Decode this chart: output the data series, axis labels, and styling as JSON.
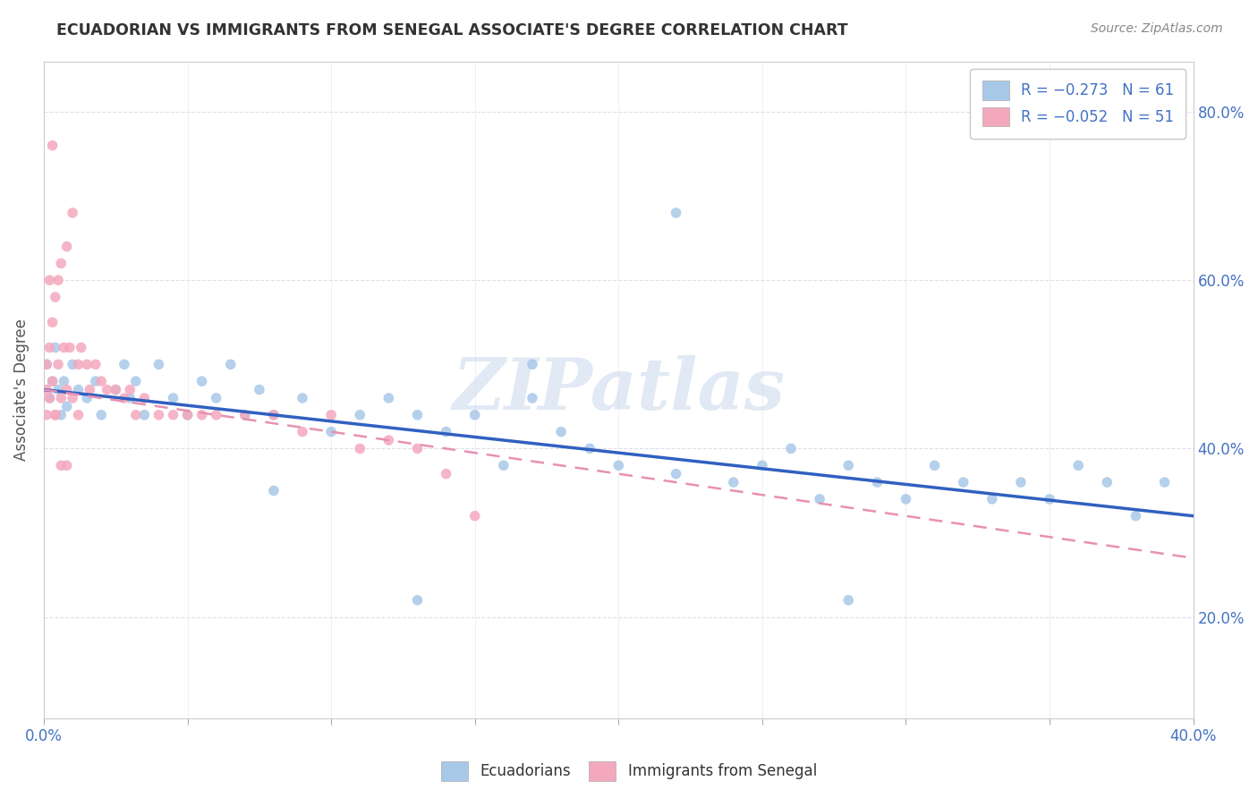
{
  "title": "ECUADORIAN VS IMMIGRANTS FROM SENEGAL ASSOCIATE'S DEGREE CORRELATION CHART",
  "source": "Source: ZipAtlas.com",
  "ylabel": "Associate's Degree",
  "legend_bottom": [
    "Ecuadorians",
    "Immigrants from Senegal"
  ],
  "ecu_color": "#a8c8e8",
  "sen_color": "#f4a8be",
  "ecu_line_color": "#3060c0",
  "sen_line_color": "#e890b0",
  "background_color": "#ffffff",
  "watermark": "ZIPatlas",
  "xlim": [
    0.0,
    0.4
  ],
  "ylim": [
    0.08,
    0.86
  ],
  "ecu_R": -0.273,
  "ecu_N": 61,
  "sen_R": -0.052,
  "sen_N": 51,
  "ecu_line_x0": 0.0,
  "ecu_line_y0": 0.47,
  "ecu_line_x1": 0.4,
  "ecu_line_y1": 0.32,
  "sen_line_x0": 0.0,
  "sen_line_y0": 0.47,
  "sen_line_x1": 0.4,
  "sen_line_y1": 0.27,
  "ecu_x": [
    0.001,
    0.002,
    0.003,
    0.004,
    0.005,
    0.006,
    0.007,
    0.008,
    0.01,
    0.012,
    0.015,
    0.018,
    0.02,
    0.025,
    0.028,
    0.03,
    0.032,
    0.035,
    0.04,
    0.045,
    0.05,
    0.055,
    0.06,
    0.065,
    0.07,
    0.075,
    0.08,
    0.09,
    0.1,
    0.11,
    0.12,
    0.13,
    0.14,
    0.15,
    0.16,
    0.17,
    0.18,
    0.19,
    0.2,
    0.22,
    0.24,
    0.25,
    0.26,
    0.27,
    0.28,
    0.29,
    0.3,
    0.31,
    0.32,
    0.33,
    0.34,
    0.35,
    0.36,
    0.37,
    0.38,
    0.39,
    0.22,
    0.08,
    0.17,
    0.13,
    0.28
  ],
  "ecu_y": [
    0.5,
    0.46,
    0.48,
    0.52,
    0.47,
    0.44,
    0.48,
    0.45,
    0.5,
    0.47,
    0.46,
    0.48,
    0.44,
    0.47,
    0.5,
    0.46,
    0.48,
    0.44,
    0.5,
    0.46,
    0.44,
    0.48,
    0.46,
    0.5,
    0.44,
    0.47,
    0.44,
    0.46,
    0.42,
    0.44,
    0.46,
    0.44,
    0.42,
    0.44,
    0.38,
    0.46,
    0.42,
    0.4,
    0.38,
    0.37,
    0.36,
    0.38,
    0.4,
    0.34,
    0.38,
    0.36,
    0.34,
    0.38,
    0.36,
    0.34,
    0.36,
    0.34,
    0.38,
    0.36,
    0.32,
    0.36,
    0.68,
    0.35,
    0.5,
    0.22,
    0.22
  ],
  "sen_x": [
    0.001,
    0.001,
    0.001,
    0.002,
    0.002,
    0.003,
    0.003,
    0.004,
    0.004,
    0.005,
    0.005,
    0.006,
    0.006,
    0.007,
    0.008,
    0.008,
    0.009,
    0.01,
    0.01,
    0.012,
    0.012,
    0.013,
    0.015,
    0.016,
    0.018,
    0.02,
    0.022,
    0.025,
    0.028,
    0.03,
    0.032,
    0.035,
    0.04,
    0.045,
    0.05,
    0.055,
    0.06,
    0.07,
    0.08,
    0.09,
    0.1,
    0.11,
    0.12,
    0.13,
    0.14,
    0.15,
    0.003,
    0.002,
    0.004,
    0.006,
    0.008
  ],
  "sen_y": [
    0.47,
    0.5,
    0.44,
    0.52,
    0.46,
    0.55,
    0.48,
    0.58,
    0.44,
    0.6,
    0.5,
    0.62,
    0.46,
    0.52,
    0.64,
    0.47,
    0.52,
    0.46,
    0.68,
    0.5,
    0.44,
    0.52,
    0.5,
    0.47,
    0.5,
    0.48,
    0.47,
    0.47,
    0.46,
    0.47,
    0.44,
    0.46,
    0.44,
    0.44,
    0.44,
    0.44,
    0.44,
    0.44,
    0.44,
    0.42,
    0.44,
    0.4,
    0.41,
    0.4,
    0.37,
    0.32,
    0.76,
    0.6,
    0.44,
    0.38,
    0.38
  ]
}
